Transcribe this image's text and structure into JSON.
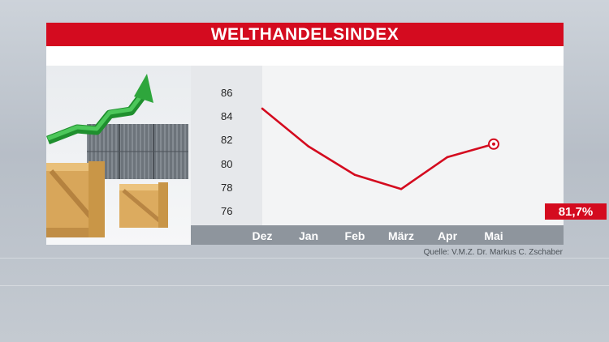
{
  "title": "WELTHANDELSINDEX",
  "source": "Quelle: V.M.Z. Dr. Markus C. Zschaber",
  "value_label": "81,7%",
  "colors": {
    "accent": "#d40b1f",
    "axis_bar": "#8e959d"
  },
  "chart_data": {
    "type": "line",
    "title": "WELTHANDELSINDEX",
    "categories": [
      "Dez",
      "Jan",
      "Feb",
      "März",
      "Apr",
      "Mai"
    ],
    "series": [
      {
        "values": [
          84.7,
          81.5,
          79.1,
          77.9,
          80.6,
          81.7
        ]
      }
    ],
    "yticks": [
      "86",
      "84",
      "82",
      "80",
      "78",
      "76"
    ],
    "ylim": [
      75,
      87
    ],
    "xlabel": "",
    "ylabel": "",
    "grid": false,
    "end_marker": "circle"
  }
}
